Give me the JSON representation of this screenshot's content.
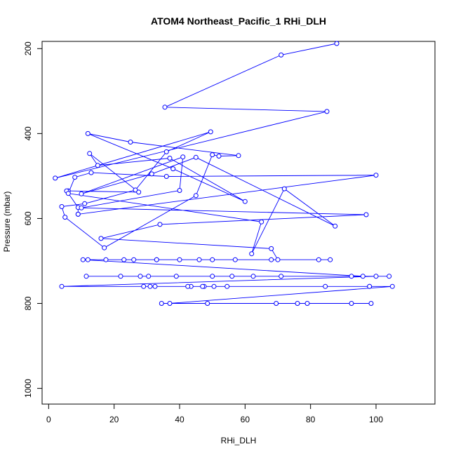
{
  "chart_data": {
    "type": "line",
    "title": "ATOM4 Northeast_Pacific_1 RHi_DLH",
    "xlabel": "RHi_DLH",
    "ylabel": "Pressure (mbar)",
    "xlim": [
      -2,
      118
    ],
    "ylim": [
      1037,
      183
    ],
    "y_reversed": true,
    "x_ticks": [
      0,
      20,
      40,
      60,
      80,
      100
    ],
    "y_ticks": [
      200,
      400,
      600,
      800,
      1000
    ],
    "grid": false,
    "legend": "none",
    "series_color": "#0000FF",
    "series": [
      {
        "x": [
          88,
          71,
          35.5,
          85,
          2,
          49.5,
          36,
          26.5,
          11,
          4,
          5,
          17,
          45,
          50,
          52,
          58,
          25,
          12,
          38,
          60,
          37,
          15,
          12.5,
          27.5,
          6,
          5.5,
          9,
          9,
          9,
          100,
          36,
          13,
          8,
          6,
          65,
          62,
          72,
          87.5,
          45,
          31.5,
          10,
          41,
          40,
          10,
          97,
          34,
          16,
          68,
          70,
          86,
          57,
          23,
          33,
          46,
          68,
          33,
          17.5,
          40,
          82.5,
          50,
          26,
          12,
          10.5,
          96,
          50,
          39,
          30.5,
          11.5,
          56,
          104,
          92.5,
          22,
          71,
          28,
          62.5,
          100,
          4,
          98,
          32.5,
          31,
          98,
          43.5,
          50.5,
          29,
          47.5,
          84.5,
          47,
          54.5,
          42.5,
          105,
          37,
          92.5,
          76,
          48.5,
          34.5,
          79,
          69.5,
          98.5
        ],
        "y": [
          188,
          215,
          338,
          348,
          505,
          396,
          443,
          533,
          565,
          572,
          597,
          669,
          546,
          450,
          453,
          452,
          420,
          400,
          483,
          560,
          458,
          475,
          447,
          538,
          535,
          535,
          574,
          590,
          590,
          498,
          501,
          492,
          503,
          541,
          608,
          683,
          530,
          618,
          456,
          495,
          542,
          455,
          534,
          575,
          591,
          614,
          647,
          671,
          697,
          697,
          697,
          697,
          697,
          697,
          697,
          697,
          697,
          697,
          697,
          697,
          697,
          697,
          697,
          736,
          736,
          736,
          736,
          736,
          736,
          736,
          736,
          736,
          736,
          736,
          736,
          736,
          760,
          760,
          760,
          760,
          760,
          760,
          760,
          760,
          760,
          760,
          760,
          760,
          760,
          760,
          800,
          800,
          800,
          800,
          800,
          800,
          800,
          800
        ]
      }
    ]
  }
}
